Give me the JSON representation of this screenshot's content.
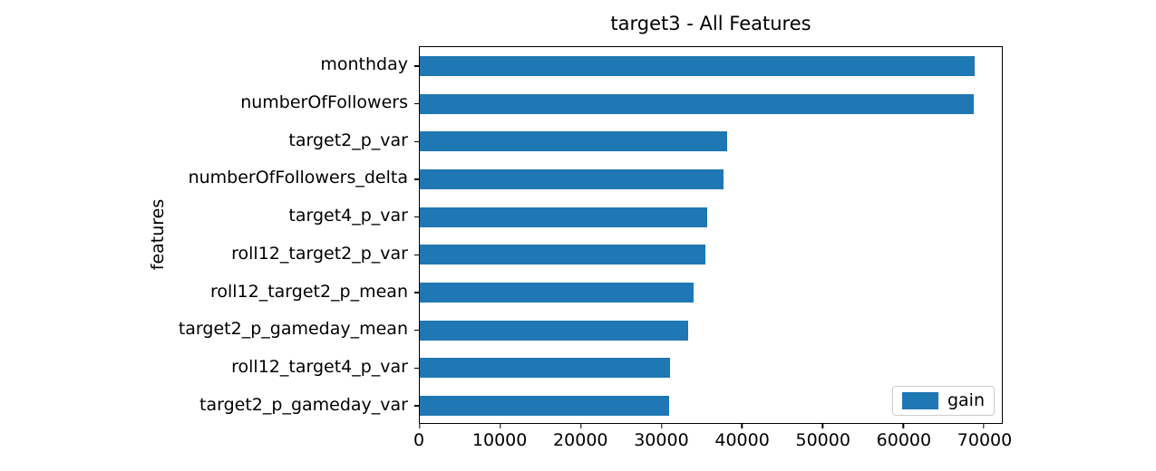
{
  "chart_data": {
    "type": "bar",
    "orientation": "horizontal",
    "title": "target3 - All Features",
    "xlabel": "",
    "ylabel": "features",
    "categories": [
      "monthday",
      "numberOfFollowers",
      "target2_p_var",
      "numberOfFollowers_delta",
      "target4_p_var",
      "roll12_target2_p_var",
      "roll12_target2_p_mean",
      "target2_p_gameday_mean",
      "roll12_target4_p_var",
      "target2_p_gameday_var"
    ],
    "series": [
      {
        "name": "gain",
        "values": [
          68900,
          68700,
          38100,
          37700,
          35700,
          35500,
          34000,
          33300,
          31100,
          31000
        ]
      }
    ],
    "xlim": [
      0,
      72240
    ],
    "xticks": [
      0,
      10000,
      20000,
      30000,
      40000,
      50000,
      60000,
      70000
    ],
    "grid": false,
    "legend": {
      "label": "gain",
      "position": "lower right"
    },
    "bar_color": "#1f77b4",
    "frame_color": "#000000"
  }
}
